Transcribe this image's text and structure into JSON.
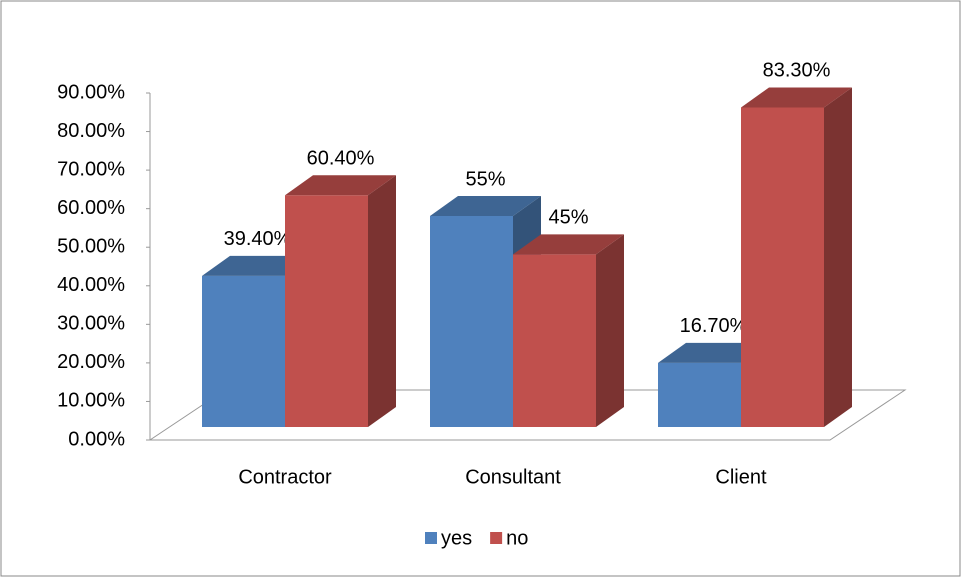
{
  "chart_data": {
    "type": "bar3d",
    "categories": [
      "Contractor",
      "Consultant",
      "Client"
    ],
    "series": [
      {
        "name": "yes",
        "color": "#4f81bd",
        "values": [
          39.4,
          55,
          16.7
        ],
        "value_labels": [
          "39.40%",
          "55%",
          "16.70%"
        ]
      },
      {
        "name": "no",
        "color": "#c0504d",
        "values": [
          60.4,
          45,
          83.3
        ],
        "value_labels": [
          "60.40%",
          "45%",
          "83.30%"
        ]
      }
    ],
    "ylim": [
      0,
      90
    ],
    "yticks": [
      {
        "value": 0,
        "label": "0.00%"
      },
      {
        "value": 10,
        "label": "10.00%"
      },
      {
        "value": 20,
        "label": "20.00%"
      },
      {
        "value": 30,
        "label": "30.00%"
      },
      {
        "value": 40,
        "label": "40.00%"
      },
      {
        "value": 50,
        "label": "50.00%"
      },
      {
        "value": 60,
        "label": "60.00%"
      },
      {
        "value": 70,
        "label": "70.00%"
      },
      {
        "value": 80,
        "label": "80.00%"
      },
      {
        "value": 90,
        "label": "90.00%"
      }
    ],
    "legend": "bottom"
  }
}
